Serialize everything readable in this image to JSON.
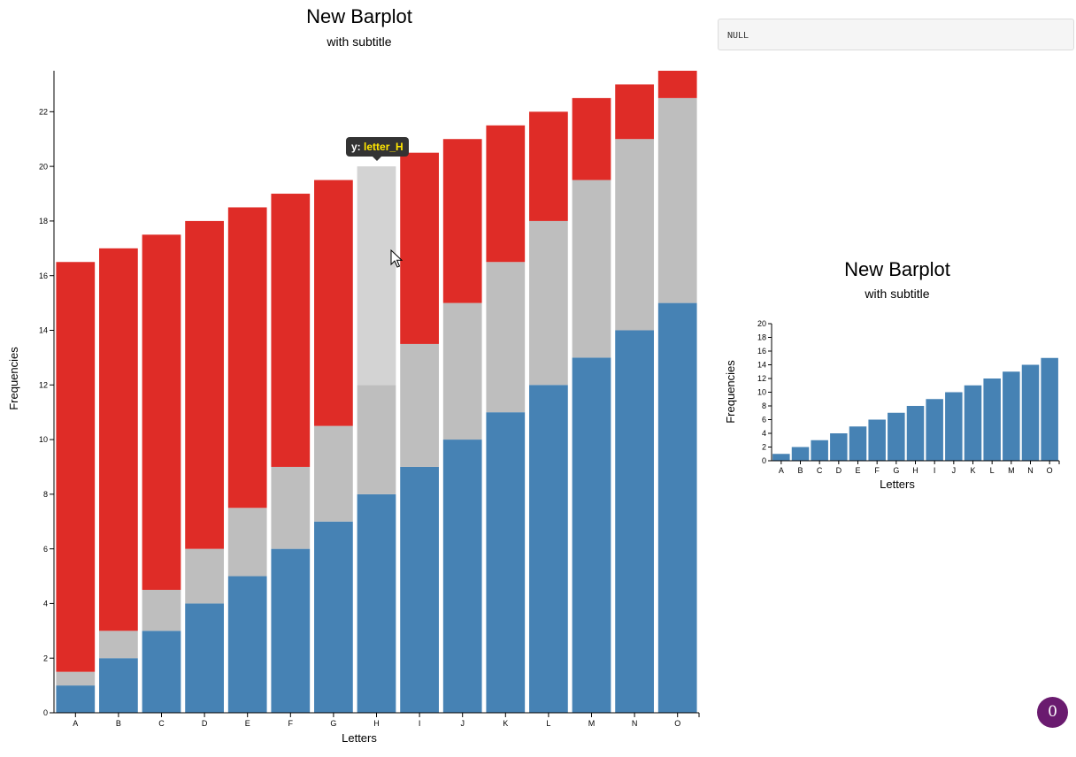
{
  "console_output": {
    "text": "NULL"
  },
  "badge": {
    "count": "0"
  },
  "tooltip": {
    "label": "y:",
    "value": "letter_H"
  },
  "chart_data": [
    {
      "type": "bar",
      "stacked": true,
      "title": "New Barplot",
      "subtitle": "with subtitle",
      "xlabel": "Letters",
      "ylabel": "Frequencies",
      "categories": [
        "A",
        "B",
        "C",
        "D",
        "E",
        "F",
        "G",
        "H",
        "I",
        "J",
        "K",
        "L",
        "M",
        "N",
        "O"
      ],
      "ylim": [
        0,
        23.5
      ],
      "yticks": [
        0,
        2,
        4,
        6,
        8,
        10,
        12,
        14,
        16,
        18,
        20,
        22
      ],
      "series": [
        {
          "color": "#4682b4",
          "values": [
            1,
            2,
            3,
            4,
            5,
            6,
            7,
            8,
            9,
            10,
            11,
            12,
            13,
            14,
            15
          ]
        },
        {
          "color": "#bebebe",
          "values": [
            0.5,
            1,
            1.5,
            2,
            2.5,
            3,
            3.5,
            4,
            4.5,
            5,
            5.5,
            6,
            6.5,
            7,
            7.5
          ]
        },
        {
          "color": "#df2c27",
          "values": [
            15,
            14,
            13,
            12,
            11,
            10,
            9,
            8,
            7,
            6,
            5,
            4,
            3,
            2,
            1
          ]
        }
      ],
      "highlight": {
        "category": "H",
        "series_index": 2,
        "color": "#d3d3d3"
      },
      "grid": false
    },
    {
      "type": "bar",
      "title": "New Barplot",
      "subtitle": "with subtitle",
      "xlabel": "Letters",
      "ylabel": "Frequencies",
      "categories": [
        "A",
        "B",
        "C",
        "D",
        "E",
        "F",
        "G",
        "H",
        "I",
        "J",
        "K",
        "L",
        "M",
        "N",
        "O"
      ],
      "values": [
        1,
        2,
        3,
        4,
        5,
        6,
        7,
        8,
        9,
        10,
        11,
        12,
        13,
        14,
        15
      ],
      "color": "#4682b4",
      "ylim": [
        0,
        20
      ],
      "yticks": [
        0,
        2,
        4,
        6,
        8,
        10,
        12,
        14,
        16,
        18,
        20
      ],
      "grid": false
    }
  ]
}
